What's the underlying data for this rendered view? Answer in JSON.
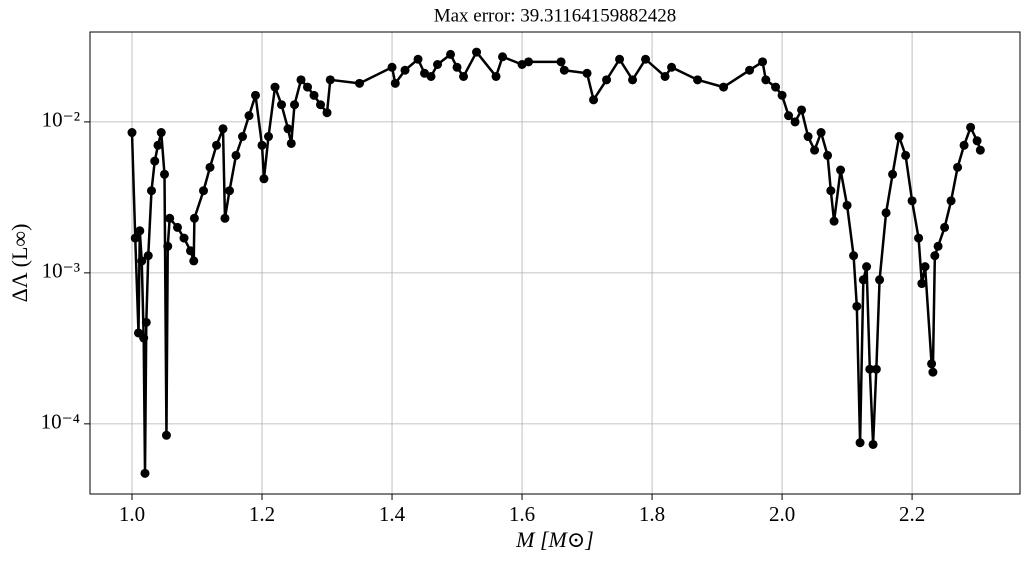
{
  "chart_data": {
    "type": "line",
    "title": "Max error: 39.31164159882428",
    "x_label": "M [M⊙]",
    "y_label": "ΔΛ (L∞)",
    "color": "#000000",
    "log_y": true,
    "grid": true,
    "xlim": [
      0.9354,
      2.366
    ],
    "ylim": [
      3.43e-05,
      0.0394
    ],
    "xticks": [
      {
        "value": 1,
        "label": "1.0"
      },
      1.2,
      1.4,
      1.6,
      1.8,
      {
        "value": 2,
        "label": "2.0"
      },
      2.2
    ],
    "yticks": [
      {
        "value": 0.0001,
        "label": "10⁻⁴"
      },
      {
        "value": 0.001,
        "label": "10⁻³"
      },
      {
        "value": 0.01,
        "label": "10⁻²"
      }
    ],
    "x": [
      1.0,
      1.005,
      1.01,
      1.012,
      1.015,
      1.018,
      1.02,
      1.022,
      1.025,
      1.03,
      1.035,
      1.04,
      1.045,
      1.05,
      1.053,
      1.055,
      1.058,
      1.07,
      1.08,
      1.09,
      1.095,
      1.096,
      1.11,
      1.12,
      1.13,
      1.14,
      1.143,
      1.15,
      1.16,
      1.17,
      1.18,
      1.19,
      1.2,
      1.203,
      1.21,
      1.22,
      1.23,
      1.24,
      1.245,
      1.25,
      1.26,
      1.27,
      1.28,
      1.29,
      1.3,
      1.305,
      1.35,
      1.4,
      1.405,
      1.42,
      1.44,
      1.45,
      1.46,
      1.47,
      1.49,
      1.5,
      1.51,
      1.53,
      1.56,
      1.57,
      1.6,
      1.61,
      1.66,
      1.665,
      1.7,
      1.71,
      1.73,
      1.75,
      1.77,
      1.79,
      1.82,
      1.83,
      1.87,
      1.91,
      1.95,
      1.97,
      1.975,
      1.99,
      2.0,
      2.01,
      2.02,
      2.03,
      2.04,
      2.05,
      2.06,
      2.07,
      2.075,
      2.08,
      2.09,
      2.1,
      2.11,
      2.115,
      2.12,
      2.125,
      2.13,
      2.135,
      2.14,
      2.145,
      2.15,
      2.16,
      2.17,
      2.18,
      2.19,
      2.2,
      2.21,
      2.215,
      2.22,
      2.23,
      2.232,
      2.235,
      2.24,
      2.25,
      2.26,
      2.27,
      2.28,
      2.29,
      2.3,
      2.305
    ],
    "values": [
      0.0085,
      0.0017,
      0.0004,
      0.0019,
      0.0012,
      0.00037,
      4.7e-05,
      0.00047,
      0.0013,
      0.0035,
      0.0055,
      0.007,
      0.0085,
      0.0045,
      8.4e-05,
      0.0015,
      0.0023,
      0.002,
      0.0017,
      0.0014,
      0.0012,
      0.0023,
      0.0035,
      0.005,
      0.007,
      0.009,
      0.0023,
      0.0035,
      0.006,
      0.008,
      0.011,
      0.015,
      0.007,
      0.0042,
      0.008,
      0.017,
      0.013,
      0.009,
      0.0072,
      0.013,
      0.019,
      0.017,
      0.015,
      0.013,
      0.0115,
      0.019,
      0.018,
      0.023,
      0.018,
      0.022,
      0.026,
      0.021,
      0.02,
      0.024,
      0.028,
      0.023,
      0.02,
      0.029,
      0.02,
      0.027,
      0.024,
      0.025,
      0.025,
      0.022,
      0.021,
      0.014,
      0.019,
      0.026,
      0.019,
      0.026,
      0.02,
      0.023,
      0.019,
      0.017,
      0.022,
      0.025,
      0.019,
      0.017,
      0.015,
      0.011,
      0.01,
      0.012,
      0.008,
      0.0065,
      0.0085,
      0.006,
      0.0035,
      0.0022,
      0.0048,
      0.0028,
      0.0013,
      0.0006,
      7.5e-05,
      0.0009,
      0.0011,
      0.00023,
      7.3e-05,
      0.00023,
      0.0009,
      0.0025,
      0.0045,
      0.008,
      0.006,
      0.003,
      0.0017,
      0.00085,
      0.0011,
      0.00025,
      0.00022,
      0.0013,
      0.0015,
      0.002,
      0.003,
      0.005,
      0.007,
      0.0092,
      0.0075,
      0.0065
    ]
  }
}
